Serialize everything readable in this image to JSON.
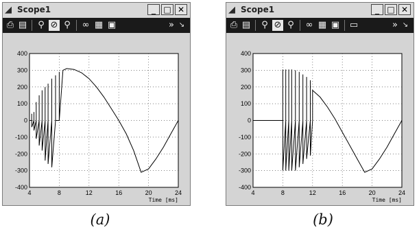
{
  "windows": [
    {
      "title": "Scope1",
      "caption": "(a)",
      "controls": {
        "minimize": "_",
        "maximize": "□",
        "close": "✕"
      },
      "toolbar": {
        "icons": [
          "print-icon",
          "parameters-icon",
          "zoom-icon",
          "zoom-x-icon",
          "zoom-y-icon",
          "binoculars-icon",
          "save-axes-icon",
          "restore-axes-icon"
        ],
        "overflow": "»"
      },
      "chart_data": {
        "type": "line",
        "title": "",
        "xlabel": "Time [ms]",
        "ylabel": "",
        "xlim": [
          4,
          24
        ],
        "ylim": [
          -400,
          400
        ],
        "xticks": [
          "4",
          "8",
          "12",
          "16",
          "20",
          "24"
        ],
        "yticks": [
          "400",
          "300",
          "200",
          "100",
          "0",
          "-100",
          "-200",
          "-300",
          "-400"
        ],
        "grid": true,
        "series": [
          {
            "x": [
              4,
              4.3,
              4.3,
              4.3,
              4.6,
              4.6,
              4.6,
              4.9,
              4.9,
              4.9,
              5.3,
              5.3,
              5.3,
              5.7,
              5.7,
              5.7,
              6.1,
              6.1,
              6.1,
              6.5,
              6.5,
              6.5,
              7,
              7,
              7,
              7.5,
              7.5,
              7.5,
              8,
              8,
              8,
              8.5,
              9,
              10,
              11,
              12,
              13,
              14,
              15,
              16,
              17,
              18,
              19,
              20,
              21,
              22,
              23,
              24
            ],
            "y": [
              0,
              0,
              40,
              -40,
              0,
              50,
              -60,
              0,
              110,
              -110,
              0,
              150,
              -150,
              0,
              180,
              -180,
              0,
              200,
              -240,
              0,
              220,
              -260,
              0,
              250,
              -280,
              0,
              270,
              0,
              0,
              290,
              0,
              300,
              310,
              305,
              285,
              250,
              200,
              140,
              70,
              0,
              -80,
              -180,
              -310,
              -290,
              -230,
              -160,
              -80,
              0
            ]
          }
        ]
      }
    },
    {
      "title": "Scope1",
      "caption": "(b)",
      "controls": {
        "minimize": "_",
        "maximize": "□",
        "close": "✕"
      },
      "toolbar": {
        "icons": [
          "print-icon",
          "parameters-icon",
          "zoom-icon",
          "zoom-x-icon",
          "zoom-y-icon",
          "binoculars-icon",
          "save-axes-icon",
          "restore-axes-icon",
          "select-icon"
        ],
        "overflow": "»"
      },
      "chart_data": {
        "type": "line",
        "title": "",
        "xlabel": "Time [ms]",
        "ylabel": "",
        "xlim": [
          4,
          24
        ],
        "ylim": [
          -400,
          400
        ],
        "xticks": [
          "4",
          "8",
          "12",
          "16",
          "20",
          "24"
        ],
        "yticks": [
          "400",
          "300",
          "200",
          "100",
          "0",
          "-100",
          "-200",
          "-300",
          "-400"
        ],
        "grid": true,
        "series": [
          {
            "x": [
              4,
              8,
              8,
              8,
              8.4,
              8.4,
              8.4,
              8.8,
              8.8,
              8.8,
              9.2,
              9.2,
              9.2,
              9.7,
              9.7,
              9.7,
              10.2,
              10.2,
              10.2,
              10.7,
              10.7,
              10.7,
              11.2,
              11.2,
              11.2,
              11.7,
              11.7,
              11.7,
              12,
              12,
              13,
              14,
              15,
              16,
              17,
              18,
              19,
              20,
              21,
              22,
              23,
              24
            ],
            "y": [
              0,
              0,
              305,
              -300,
              0,
              305,
              -300,
              0,
              305,
              -300,
              0,
              305,
              -300,
              0,
              300,
              -300,
              0,
              290,
              -280,
              0,
              275,
              -260,
              0,
              260,
              -230,
              0,
              240,
              -210,
              0,
              180,
              140,
              80,
              10,
              -70,
              -150,
              -230,
              -310,
              -290,
              -230,
              -160,
              -80,
              0
            ]
          }
        ]
      }
    }
  ]
}
